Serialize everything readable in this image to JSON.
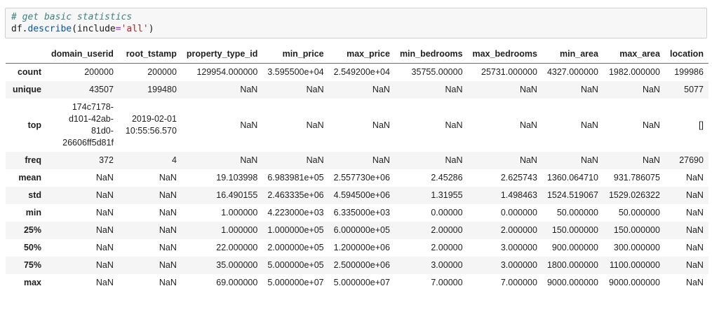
{
  "colors": {
    "code_cell_bg": "#f7f7f7",
    "code_cell_border": "#cfcfcf",
    "comment": "#408080",
    "property": "#0055aa",
    "operator": "#aa22ff",
    "string": "#ba2121",
    "code_default": "#1a1a1a",
    "table_text": "#1f1f1f",
    "row_stripe": "#f5f5f5",
    "header_border": "#6e6e6e"
  },
  "code_cell": {
    "language": "python",
    "lines": [
      {
        "tokens": [
          {
            "text": "# get basic statistics",
            "style": "comment"
          }
        ]
      },
      {
        "tokens": [
          {
            "text": "df",
            "style": "plain"
          },
          {
            "text": ".",
            "style": "plain"
          },
          {
            "text": "describe",
            "style": "property"
          },
          {
            "text": "(include",
            "style": "plain"
          },
          {
            "text": "=",
            "style": "operator"
          },
          {
            "text": "'all'",
            "style": "string"
          },
          {
            "text": ")",
            "style": "plain"
          }
        ]
      }
    ]
  },
  "table": {
    "index_header": "",
    "columns": [
      "domain_userid",
      "root_tstamp",
      "property_type_id",
      "min_price",
      "max_price",
      "min_bedrooms",
      "max_bedrooms",
      "min_area",
      "max_area",
      "location"
    ],
    "rows": [
      {
        "label": "count",
        "values": [
          "200000",
          "200000",
          "129954.000000",
          "3.595500e+04",
          "2.549200e+04",
          "35755.00000",
          "25731.000000",
          "4327.000000",
          "1982.000000",
          "199986"
        ]
      },
      {
        "label": "unique",
        "values": [
          "43507",
          "199480",
          "NaN",
          "NaN",
          "NaN",
          "NaN",
          "NaN",
          "NaN",
          "NaN",
          "5077"
        ]
      },
      {
        "label": "top",
        "values": [
          "174c7178-d101-42ab-81d0-26606ff5d81f",
          "2019-02-01 10:55:56.570",
          "NaN",
          "NaN",
          "NaN",
          "NaN",
          "NaN",
          "NaN",
          "NaN",
          "[]"
        ]
      },
      {
        "label": "freq",
        "values": [
          "372",
          "4",
          "NaN",
          "NaN",
          "NaN",
          "NaN",
          "NaN",
          "NaN",
          "NaN",
          "27690"
        ]
      },
      {
        "label": "mean",
        "values": [
          "NaN",
          "NaN",
          "19.103998",
          "6.983981e+05",
          "2.557730e+06",
          "2.45286",
          "2.625743",
          "1360.064710",
          "931.786075",
          "NaN"
        ]
      },
      {
        "label": "std",
        "values": [
          "NaN",
          "NaN",
          "16.490155",
          "2.463335e+06",
          "4.594500e+06",
          "1.31955",
          "1.498463",
          "1524.519067",
          "1529.026322",
          "NaN"
        ]
      },
      {
        "label": "min",
        "values": [
          "NaN",
          "NaN",
          "1.000000",
          "4.223000e+03",
          "6.335000e+03",
          "0.00000",
          "0.000000",
          "50.000000",
          "50.000000",
          "NaN"
        ]
      },
      {
        "label": "25%",
        "values": [
          "NaN",
          "NaN",
          "1.000000",
          "1.000000e+05",
          "6.000000e+05",
          "2.00000",
          "2.000000",
          "150.000000",
          "150.000000",
          "NaN"
        ]
      },
      {
        "label": "50%",
        "values": [
          "NaN",
          "NaN",
          "22.000000",
          "2.000000e+05",
          "1.200000e+06",
          "2.00000",
          "3.000000",
          "900.000000",
          "300.000000",
          "NaN"
        ]
      },
      {
        "label": "75%",
        "values": [
          "NaN",
          "NaN",
          "35.000000",
          "5.000000e+05",
          "2.500000e+06",
          "3.00000",
          "3.000000",
          "1800.000000",
          "1100.000000",
          "NaN"
        ]
      },
      {
        "label": "max",
        "values": [
          "NaN",
          "NaN",
          "69.000000",
          "5.000000e+07",
          "5.000000e+07",
          "7.00000",
          "7.000000",
          "9000.000000",
          "9000.000000",
          "NaN"
        ]
      }
    ]
  }
}
